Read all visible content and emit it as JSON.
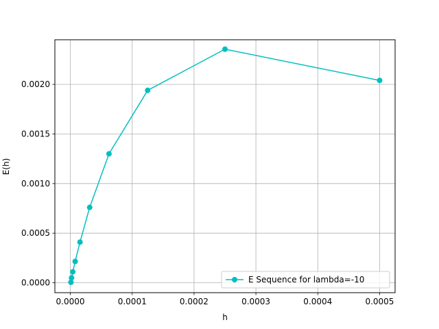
{
  "chart_data": {
    "type": "line",
    "title": "",
    "xlabel": "h",
    "ylabel": "E(h)",
    "xlim": [
      -2.5e-05,
      0.000525
    ],
    "ylim": [
      -0.0001,
      0.00245
    ],
    "grid": true,
    "legend_position": "lower-right",
    "x_ticks": [
      0.0,
      0.0001,
      0.0002,
      0.0003,
      0.0004,
      0.0005
    ],
    "x_tick_labels": [
      "0.0000",
      "0.0001",
      "0.0002",
      "0.0003",
      "0.0004",
      "0.0005"
    ],
    "y_ticks": [
      0.0,
      0.0005,
      0.001,
      0.0015,
      0.002
    ],
    "y_tick_labels": [
      "0.0000",
      "0.0005",
      "0.0010",
      "0.0015",
      "0.0020"
    ],
    "series": [
      {
        "name": "E Sequence for lambda=-10",
        "color": "#00bfbf",
        "marker": "circle",
        "x": [
          0.0005,
          0.00025,
          0.000125,
          6.25e-05,
          3.125e-05,
          1.5625e-05,
          7.8125e-06,
          3.90625e-06,
          1.953125e-06,
          9.765625e-07
        ],
        "y": [
          0.00204,
          0.002355,
          0.00194,
          0.0013,
          0.00076,
          0.00041,
          0.000215,
          0.00011,
          5e-05,
          5e-06
        ]
      }
    ]
  }
}
